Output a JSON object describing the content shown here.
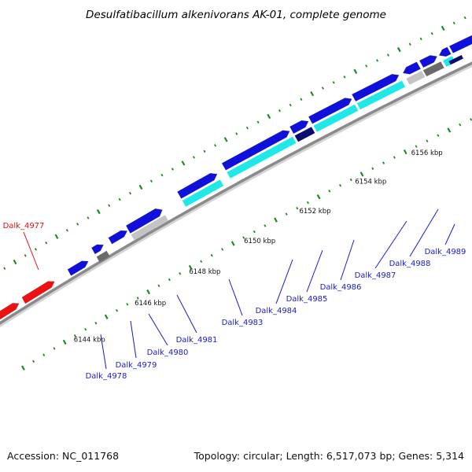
{
  "title": "Desulfatibacillum alkenivorans AK-01, complete genome",
  "footer": {
    "accession": "Accession: NC_011768",
    "summary": "Topology: circular; Length: 6,517,073 bp; Genes: 5,314"
  },
  "colors": {
    "gene_blue": "#1010dd",
    "gene_red": "#ee1111",
    "gene_cyan": "#20e8e8",
    "gene_navy": "#0a0a70",
    "gene_lightgray": "#c4c4c4",
    "gene_darkgray": "#6a6a6a",
    "backbone": "#8a8a8a",
    "tick_green": "#228822",
    "label_blue": "#1a1acc",
    "label_red": "#dd1111"
  },
  "scale": {
    "ticks": [
      {
        "label": "6144 kbp"
      },
      {
        "label": "6146 kbp"
      },
      {
        "label": "6148 kbp"
      },
      {
        "label": "6150 kbp"
      },
      {
        "label": "6152 kbp"
      },
      {
        "label": "6154 kbp"
      },
      {
        "label": "6156 kbp"
      }
    ]
  },
  "genes": [
    {
      "label": "Dalk_4977",
      "color": "red"
    },
    {
      "label": "Dalk_4978",
      "color": "blue"
    },
    {
      "label": "Dalk_4979",
      "color": "blue"
    },
    {
      "label": "Dalk_4980",
      "color": "blue"
    },
    {
      "label": "Dalk_4981",
      "color": "blue"
    },
    {
      "label": "Dalk_4983",
      "color": "blue"
    },
    {
      "label": "Dalk_4984",
      "color": "blue"
    },
    {
      "label": "Dalk_4985",
      "color": "blue"
    },
    {
      "label": "Dalk_4986",
      "color": "blue"
    },
    {
      "label": "Dalk_4987",
      "color": "blue"
    },
    {
      "label": "Dalk_4988",
      "color": "blue"
    },
    {
      "label": "Dalk_4989",
      "color": "blue"
    }
  ]
}
